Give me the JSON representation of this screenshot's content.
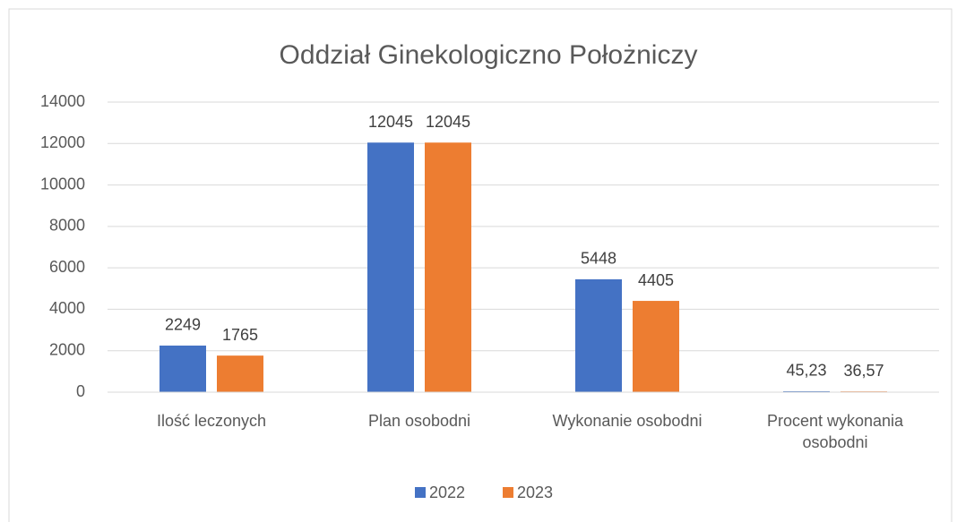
{
  "chart_data": {
    "type": "bar",
    "title": "Oddział Ginekologiczno Położniczy",
    "categories": [
      "Ilość leczonych",
      "Plan osobodni",
      "Wykonanie osobodni",
      "Procent wykonania osobodni"
    ],
    "series": [
      {
        "name": "2022",
        "color": "#4472c4",
        "values": [
          2249,
          12045,
          5448,
          45.23
        ],
        "value_labels": [
          "2249",
          "12045",
          "5448",
          "45,23"
        ]
      },
      {
        "name": "2023",
        "color": "#ed7d31",
        "values": [
          1765,
          12045,
          4405,
          36.57
        ],
        "value_labels": [
          "1765",
          "12045",
          "4405",
          "36,57"
        ]
      }
    ],
    "ylim": [
      0,
      14000
    ],
    "yticks": [
      0,
      2000,
      4000,
      6000,
      8000,
      10000,
      12000,
      14000
    ],
    "grid": true,
    "legend": "bottom"
  }
}
